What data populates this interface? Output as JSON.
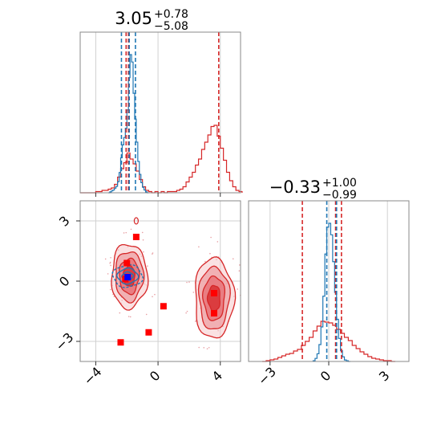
{
  "colors": {
    "red": "#d62728",
    "blue": "#1f77b4",
    "red_fill": "#f0a8aa",
    "red_fill_dark": "#d62728",
    "grid": "#d0d0d0",
    "frame": "#888888"
  },
  "chart_data": {
    "type": "corner",
    "grid": true,
    "panels": [
      {
        "id": "param1-marginal",
        "type": "histogram",
        "title_main": "3.05",
        "title_plus": "+0.78",
        "title_minus": "−5.08",
        "xlim": [
          -5,
          5.3
        ],
        "series": [
          {
            "name": "",
            "color": "#d62728",
            "bins": [
              [
                -5.0,
                0
              ],
              [
                -4.8,
                0
              ],
              [
                -4.6,
                0
              ],
              [
                -4.4,
                0
              ],
              [
                -4.2,
                0
              ],
              [
                -4.0,
                1
              ],
              [
                -3.8,
                1
              ],
              [
                -3.6,
                2
              ],
              [
                -3.4,
                2
              ],
              [
                -3.2,
                3
              ],
              [
                -3.0,
                4
              ],
              [
                -2.8,
                7
              ],
              [
                -2.6,
                13
              ],
              [
                -2.4,
                20
              ],
              [
                -2.2,
                25
              ],
              [
                -2.0,
                33
              ],
              [
                -1.8,
                28
              ],
              [
                -1.6,
                24
              ],
              [
                -1.4,
                18
              ],
              [
                -1.2,
                11
              ],
              [
                -1.0,
                5
              ],
              [
                -0.8,
                2
              ],
              [
                -0.6,
                1
              ],
              [
                -0.4,
                0
              ],
              [
                -0.2,
                1
              ],
              [
                0.0,
                0
              ],
              [
                0.2,
                1
              ],
              [
                0.4,
                0
              ],
              [
                0.6,
                1
              ],
              [
                0.8,
                1
              ],
              [
                1.0,
                1
              ],
              [
                1.2,
                2
              ],
              [
                1.4,
                3
              ],
              [
                1.6,
                5
              ],
              [
                1.8,
                9
              ],
              [
                2.0,
                13
              ],
              [
                2.2,
                17
              ],
              [
                2.4,
                23
              ],
              [
                2.6,
                28
              ],
              [
                2.8,
                36
              ],
              [
                3.0,
                42
              ],
              [
                3.2,
                48
              ],
              [
                3.4,
                55
              ],
              [
                3.6,
                56
              ],
              [
                3.8,
                47
              ],
              [
                4.0,
                37
              ],
              [
                4.2,
                27
              ],
              [
                4.4,
                17
              ],
              [
                4.6,
                10
              ],
              [
                4.8,
                5
              ],
              [
                5.0,
                2
              ],
              [
                5.2,
                1
              ]
            ]
          },
          {
            "name": "",
            "color": "#1f77b4",
            "bins": [
              [
                -3.2,
                0
              ],
              [
                -3.1,
                1
              ],
              [
                -3.0,
                2
              ],
              [
                -2.9,
                3
              ],
              [
                -2.8,
                5
              ],
              [
                -2.7,
                7
              ],
              [
                -2.6,
                12
              ],
              [
                -2.5,
                22
              ],
              [
                -2.4,
                38
              ],
              [
                -2.3,
                52
              ],
              [
                -2.2,
                60
              ],
              [
                -2.1,
                70
              ],
              [
                -2.0,
                90
              ],
              [
                -1.9,
                125
              ],
              [
                -1.8,
                150
              ],
              [
                -1.7,
                142
              ],
              [
                -1.6,
                108
              ],
              [
                -1.5,
                80
              ],
              [
                -1.4,
                55
              ],
              [
                -1.3,
                34
              ],
              [
                -1.2,
                20
              ],
              [
                -1.1,
                11
              ],
              [
                -1.0,
                6
              ],
              [
                -0.9,
                3
              ],
              [
                -0.8,
                1
              ],
              [
                -0.7,
                0
              ]
            ]
          }
        ],
        "vlines": [
          {
            "x": -1.9,
            "color": "#d62728"
          },
          {
            "x": -2.05,
            "color": "#d62728"
          },
          {
            "x": 3.9,
            "color": "#d62728"
          },
          {
            "x": -2.35,
            "color": "#1f77b4"
          },
          {
            "x": -1.85,
            "color": "#1f77b4"
          },
          {
            "x": -1.45,
            "color": "#1f77b4"
          }
        ]
      },
      {
        "id": "joint",
        "type": "contour",
        "xlim": [
          -5,
          5.3
        ],
        "ylim": [
          -4,
          4
        ],
        "xticks": [
          -4,
          0,
          4
        ],
        "xticklabels": [
          "−4",
          "0",
          "4"
        ],
        "yticks": [
          -3,
          0,
          3
        ],
        "yticklabels": [
          "−3",
          "0",
          "3"
        ],
        "red_modes": [
          {
            "cx": -1.85,
            "cy": 0.25,
            "rx": 1.15,
            "ry": 1.6
          },
          {
            "cx": 3.6,
            "cy": -0.85,
            "rx": 1.25,
            "ry": 2.0
          }
        ],
        "red_markers": [
          [
            -1.4,
            2.2
          ],
          [
            -2.0,
            0.9
          ],
          [
            -2.1,
            0.1
          ],
          [
            0.35,
            -1.25
          ],
          [
            -0.6,
            -2.55
          ],
          [
            -2.4,
            -3.05
          ],
          [
            3.6,
            -0.6
          ],
          [
            3.6,
            -1.6
          ]
        ],
        "blue_marker": [
          -1.95,
          0.2
        ]
      },
      {
        "id": "param2-marginal",
        "type": "histogram",
        "title_main": "−0.33",
        "title_plus": "+1.00",
        "title_minus": "−0.99",
        "xlim": [
          -4.1,
          4.1
        ],
        "xticks": [
          -3,
          0,
          3
        ],
        "xticklabels": [
          "−3",
          "0",
          "3"
        ],
        "series": [
          {
            "name": "",
            "color": "#d62728",
            "bins": [
              [
                -3.4,
                0
              ],
              [
                -3.2,
                1
              ],
              [
                -3.0,
                2
              ],
              [
                -2.8,
                3
              ],
              [
                -2.6,
                5
              ],
              [
                -2.4,
                7
              ],
              [
                -2.2,
                9
              ],
              [
                -2.0,
                10
              ],
              [
                -1.8,
                13
              ],
              [
                -1.6,
                15
              ],
              [
                -1.4,
                20
              ],
              [
                -1.2,
                25
              ],
              [
                -1.0,
                30
              ],
              [
                -0.8,
                38
              ],
              [
                -0.6,
                44
              ],
              [
                -0.4,
                50
              ],
              [
                -0.2,
                49
              ],
              [
                0.0,
                48
              ],
              [
                0.2,
                45
              ],
              [
                0.4,
                40
              ],
              [
                0.6,
                35
              ],
              [
                0.8,
                30
              ],
              [
                1.0,
                26
              ],
              [
                1.2,
                20
              ],
              [
                1.4,
                16
              ],
              [
                1.6,
                12
              ],
              [
                1.8,
                9
              ],
              [
                2.0,
                6
              ],
              [
                2.2,
                4
              ],
              [
                2.4,
                3
              ],
              [
                2.6,
                2
              ],
              [
                2.8,
                1
              ],
              [
                3.0,
                1
              ],
              [
                3.2,
                0
              ]
            ]
          },
          {
            "name": "",
            "color": "#1f77b4",
            "bins": [
              [
                -0.8,
                1
              ],
              [
                -0.7,
                4
              ],
              [
                -0.6,
                10
              ],
              [
                -0.5,
                22
              ],
              [
                -0.4,
                45
              ],
              [
                -0.3,
                85
              ],
              [
                -0.2,
                140
              ],
              [
                -0.1,
                175
              ],
              [
                0.0,
                180
              ],
              [
                0.1,
                165
              ],
              [
                0.2,
                130
              ],
              [
                0.3,
                90
              ],
              [
                0.4,
                55
              ],
              [
                0.5,
                30
              ],
              [
                0.6,
                14
              ],
              [
                0.7,
                6
              ],
              [
                0.8,
                2
              ],
              [
                0.9,
                1
              ],
              [
                1.0,
                0
              ]
            ]
          }
        ],
        "vlines": [
          {
            "x": -1.35,
            "color": "#d62728"
          },
          {
            "x": 0.35,
            "color": "#d62728"
          },
          {
            "x": 0.65,
            "color": "#d62728"
          },
          {
            "x": -0.1,
            "color": "#1f77b4"
          },
          {
            "x": 0.4,
            "color": "#1f77b4"
          }
        ]
      }
    ]
  }
}
